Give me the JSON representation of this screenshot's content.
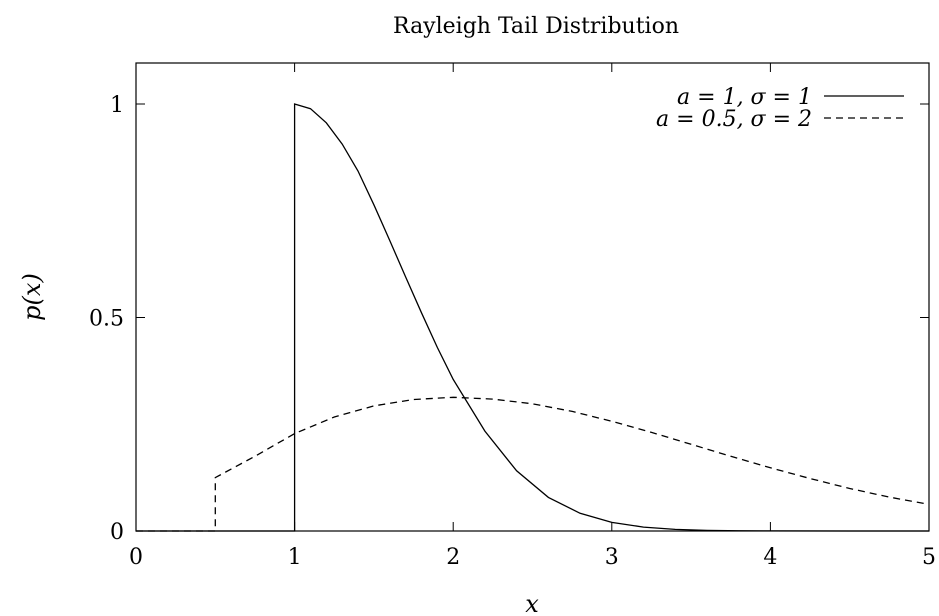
{
  "chart_data": {
    "type": "line",
    "title": "Rayleigh Tail Distribution",
    "xlabel": "x",
    "ylabel": "p(x)",
    "xlim": [
      0,
      5
    ],
    "ylim": [
      0,
      1.0
    ],
    "x_ticks": [
      "0",
      "1",
      "2",
      "3",
      "4",
      "5"
    ],
    "y_ticks": [
      "0",
      "0.5",
      "1"
    ],
    "grid": false,
    "legend_position": "top-right",
    "series": [
      {
        "name": "a = 1, σ = 1",
        "a": 1,
        "sigma": 1,
        "line_style": "solid",
        "x": [
          0,
          1,
          1,
          1.1,
          1.2,
          1.3,
          1.4,
          1.5,
          1.6,
          1.7,
          1.8,
          1.9,
          2.0,
          2.2,
          2.4,
          2.6,
          2.8,
          3.0,
          3.2,
          3.4,
          3.6,
          3.8,
          4.0,
          4.5,
          5.0
        ],
        "y": [
          0,
          0,
          1.0,
          0.989,
          0.956,
          0.906,
          0.843,
          0.764,
          0.68,
          0.595,
          0.511,
          0.43,
          0.355,
          0.234,
          0.141,
          0.0787,
          0.0414,
          0.0201,
          0.00906,
          0.00377,
          0.00144,
          0.000508,
          0.000165,
          2.8e-06,
          2e-08
        ]
      },
      {
        "name": "a = 0.5, σ = 2",
        "a": 0.5,
        "sigma": 2,
        "line_style": "dashed",
        "x": [
          0,
          0.5,
          0.5,
          0.75,
          1.0,
          1.25,
          1.5,
          1.75,
          2.0,
          2.25,
          2.5,
          2.75,
          3.0,
          3.25,
          3.5,
          3.75,
          4.0,
          4.25,
          4.5,
          4.75,
          5.0
        ],
        "y": [
          0,
          0,
          0.125,
          0.175,
          0.228,
          0.267,
          0.293,
          0.308,
          0.313,
          0.309,
          0.298,
          0.28,
          0.257,
          0.231,
          0.203,
          0.175,
          0.148,
          0.123,
          0.0996,
          0.0794,
          0.0622
        ]
      }
    ]
  }
}
